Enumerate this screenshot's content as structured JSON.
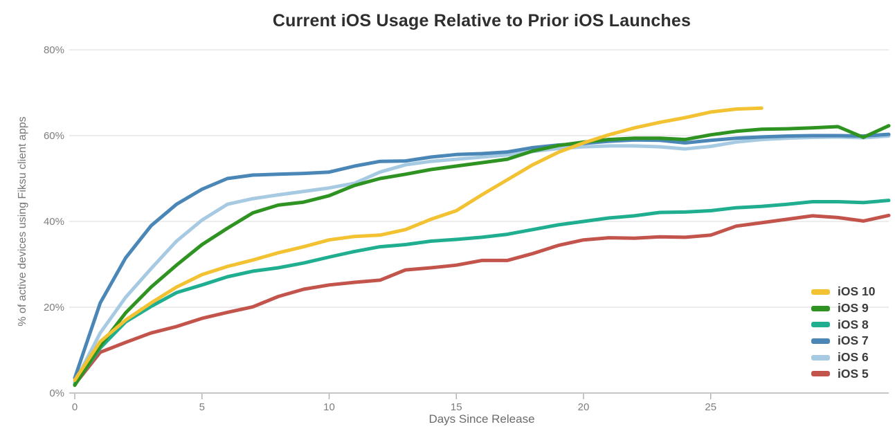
{
  "chart_data": {
    "type": "line",
    "title": "Current iOS Usage Relative to Prior iOS Launches",
    "xlabel": "Days Since Release",
    "ylabel": "% of active devices using Fiksu client apps",
    "xlim": [
      0,
      32
    ],
    "ylim": [
      0,
      80
    ],
    "x_ticks": [
      0,
      5,
      10,
      15,
      20,
      25
    ],
    "y_ticks": [
      0,
      20,
      40,
      60,
      80
    ],
    "y_tick_suffix": "%",
    "grid": "horizontal",
    "legend_position": "right",
    "x_is_index": "each value's array index = days since release",
    "series": [
      {
        "name": "iOS 10",
        "color": "#f2c233",
        "values": [
          3,
          12,
          17,
          21,
          24.7,
          27.6,
          29.5,
          31,
          32.7,
          34.1,
          35.7,
          36.5,
          36.8,
          38.1,
          40.5,
          42.5,
          46.2,
          49.7,
          53.2,
          56.1,
          58.3,
          60.2,
          61.8,
          63.1,
          64.2,
          65.5,
          66.2,
          66.4
        ]
      },
      {
        "name": "iOS 9",
        "color": "#2f9322",
        "values": [
          1.8,
          11,
          18.7,
          24.7,
          29.8,
          34.6,
          38.4,
          42,
          43.8,
          44.5,
          46,
          48.4,
          50,
          51,
          52.1,
          52.9,
          53.7,
          54.5,
          56.4,
          57.7,
          58.5,
          59.1,
          59.4,
          59.4,
          59.1,
          60.2,
          61,
          61.5,
          61.6,
          61.8,
          62.1,
          59.6,
          62.3
        ]
      },
      {
        "name": "iOS 8",
        "color": "#1fae8f",
        "values": [
          2,
          10.5,
          16.6,
          20.2,
          23.4,
          25.2,
          27.1,
          28.4,
          29.2,
          30.3,
          31.7,
          33,
          34.1,
          34.6,
          35.4,
          35.8,
          36.3,
          37,
          38.1,
          39.2,
          40,
          40.8,
          41.3,
          42.1,
          42.2,
          42.5,
          43.2,
          43.5,
          44,
          44.6,
          44.6,
          44.4,
          44.9
        ]
      },
      {
        "name": "iOS 7",
        "color": "#4a87b7",
        "values": [
          3.5,
          21,
          31.5,
          39,
          44,
          47.5,
          50,
          50.8,
          51,
          51.2,
          51.5,
          52.9,
          54,
          54.1,
          55,
          55.6,
          55.8,
          56.2,
          57.2,
          57.8,
          58.2,
          58.7,
          59,
          58.9,
          58.3,
          58.9,
          59.4,
          59.7,
          59.9,
          60,
          60,
          59.9,
          60.3
        ]
      },
      {
        "name": "iOS 6",
        "color": "#a7cae3",
        "values": [
          2.5,
          14,
          22.3,
          29,
          35.4,
          40.3,
          44,
          45.3,
          46.2,
          47,
          47.8,
          48.9,
          51.5,
          53.2,
          54,
          54.5,
          55,
          55.5,
          56.3,
          57,
          57.4,
          57.6,
          57.6,
          57.4,
          56.9,
          57.5,
          58.5,
          59.1,
          59.4,
          59.6,
          59.7,
          59.5,
          59.9
        ]
      },
      {
        "name": "iOS 5",
        "color": "#c2544c",
        "values": [
          2,
          9.5,
          11.8,
          14,
          15.5,
          17.4,
          18.8,
          20.1,
          22.5,
          24.2,
          25.2,
          25.8,
          26.3,
          28.7,
          29.2,
          29.8,
          30.9,
          30.9,
          32.5,
          34.4,
          35.7,
          36.2,
          36.1,
          36.4,
          36.3,
          36.8,
          38.9,
          39.7,
          40.5,
          41.3,
          40.9,
          40.1,
          41.4
        ]
      }
    ],
    "style": {
      "line_width": 5,
      "gridline_color": "#d9d9d9",
      "axis_line_color": "#b3b3b3",
      "tick_label_color": "#7d7d7d",
      "background": "#ffffff"
    }
  }
}
